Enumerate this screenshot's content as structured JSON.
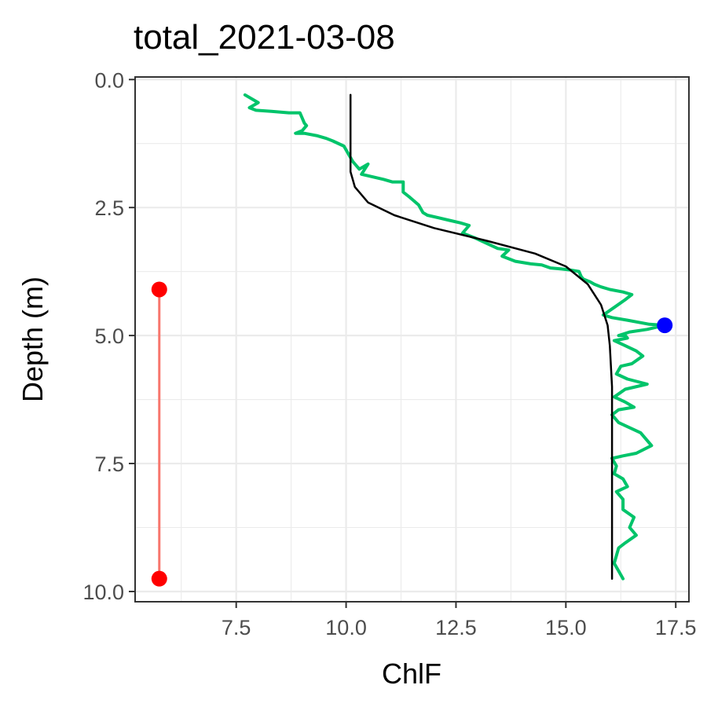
{
  "chart_data": {
    "type": "line",
    "title": "total_2021-03-08",
    "xlabel": "ChlF",
    "ylabel": "Depth (m)",
    "xlim": [
      5.2,
      17.8
    ],
    "ylim": [
      10.2,
      -0.05
    ],
    "y_reversed": true,
    "grid": true,
    "x_ticks": [
      "7.5",
      "10.0",
      "12.5",
      "15.0",
      "17.5"
    ],
    "x_tick_values": [
      7.5,
      10.0,
      12.5,
      15.0,
      17.5
    ],
    "y_ticks": [
      "0.0",
      "2.5",
      "5.0",
      "7.5",
      "10.0"
    ],
    "y_tick_values": [
      0.0,
      2.5,
      5.0,
      7.5,
      10.0
    ],
    "series": [
      {
        "kind": "observed",
        "color": "#00c46a",
        "points": [
          [
            7.7,
            0.3
          ],
          [
            8.0,
            0.45
          ],
          [
            7.8,
            0.55
          ],
          [
            7.95,
            0.6
          ],
          [
            8.3,
            0.62
          ],
          [
            8.7,
            0.65
          ],
          [
            8.95,
            0.65
          ],
          [
            9.0,
            0.75
          ],
          [
            9.05,
            0.85
          ],
          [
            9.1,
            0.9
          ],
          [
            9.0,
            1.0
          ],
          [
            8.85,
            1.05
          ],
          [
            9.05,
            1.05
          ],
          [
            9.35,
            1.1
          ],
          [
            9.55,
            1.15
          ],
          [
            9.7,
            1.2
          ],
          [
            9.95,
            1.3
          ],
          [
            10.05,
            1.45
          ],
          [
            10.15,
            1.6
          ],
          [
            10.3,
            1.75
          ],
          [
            10.5,
            1.65
          ],
          [
            10.35,
            1.85
          ],
          [
            10.6,
            1.9
          ],
          [
            10.85,
            1.95
          ],
          [
            11.05,
            2.0
          ],
          [
            11.3,
            2.0
          ],
          [
            11.3,
            2.2
          ],
          [
            11.45,
            2.3
          ],
          [
            11.65,
            2.45
          ],
          [
            11.75,
            2.6
          ],
          [
            11.85,
            2.65
          ],
          [
            12.1,
            2.7
          ],
          [
            12.35,
            2.75
          ],
          [
            12.6,
            2.8
          ],
          [
            12.8,
            2.85
          ],
          [
            12.65,
            3.0
          ],
          [
            12.95,
            3.1
          ],
          [
            13.2,
            3.2
          ],
          [
            13.45,
            3.3
          ],
          [
            13.7,
            3.33
          ],
          [
            13.55,
            3.45
          ],
          [
            13.85,
            3.55
          ],
          [
            14.2,
            3.6
          ],
          [
            14.45,
            3.62
          ],
          [
            14.65,
            3.68
          ],
          [
            14.9,
            3.7
          ],
          [
            15.1,
            3.72
          ],
          [
            15.3,
            3.75
          ],
          [
            15.35,
            3.85
          ],
          [
            15.4,
            3.9
          ],
          [
            15.55,
            3.95
          ],
          [
            15.65,
            4.0
          ],
          [
            15.8,
            4.05
          ],
          [
            16.0,
            4.1
          ],
          [
            16.3,
            4.15
          ],
          [
            16.5,
            4.2
          ],
          [
            16.35,
            4.3
          ],
          [
            16.1,
            4.45
          ],
          [
            15.85,
            4.6
          ],
          [
            16.05,
            4.65
          ],
          [
            16.4,
            4.7
          ],
          [
            16.9,
            4.78
          ],
          [
            17.25,
            4.8
          ],
          [
            16.85,
            4.88
          ],
          [
            16.45,
            4.93
          ],
          [
            16.2,
            5.0
          ],
          [
            16.35,
            5.0
          ],
          [
            16.4,
            5.05
          ],
          [
            16.1,
            5.1
          ],
          [
            16.35,
            5.2
          ],
          [
            16.6,
            5.3
          ],
          [
            16.75,
            5.4
          ],
          [
            16.5,
            5.55
          ],
          [
            16.25,
            5.6
          ],
          [
            16.15,
            5.75
          ],
          [
            16.4,
            5.85
          ],
          [
            16.85,
            5.95
          ],
          [
            16.35,
            6.05
          ],
          [
            16.1,
            6.2
          ],
          [
            16.35,
            6.3
          ],
          [
            16.55,
            6.4
          ],
          [
            16.2,
            6.45
          ],
          [
            16.05,
            6.55
          ],
          [
            16.2,
            6.7
          ],
          [
            16.45,
            6.8
          ],
          [
            16.7,
            6.9
          ],
          [
            16.85,
            7.05
          ],
          [
            16.95,
            7.15
          ],
          [
            16.6,
            7.3
          ],
          [
            16.3,
            7.35
          ],
          [
            16.05,
            7.4
          ],
          [
            16.15,
            7.55
          ],
          [
            16.1,
            7.7
          ],
          [
            16.3,
            7.8
          ],
          [
            16.4,
            7.95
          ],
          [
            16.15,
            8.05
          ],
          [
            16.3,
            8.2
          ],
          [
            16.3,
            8.4
          ],
          [
            16.55,
            8.55
          ],
          [
            16.45,
            8.75
          ],
          [
            16.6,
            8.9
          ],
          [
            16.35,
            9.05
          ],
          [
            16.2,
            9.15
          ],
          [
            16.15,
            9.3
          ],
          [
            16.1,
            9.45
          ],
          [
            16.2,
            9.6
          ],
          [
            16.3,
            9.75
          ]
        ]
      },
      {
        "kind": "fitted",
        "color": "#000000",
        "points": [
          [
            10.1,
            0.3
          ],
          [
            10.1,
            1.8
          ],
          [
            10.2,
            2.1
          ],
          [
            10.5,
            2.4
          ],
          [
            11.1,
            2.65
          ],
          [
            12.0,
            2.9
          ],
          [
            13.2,
            3.15
          ],
          [
            14.3,
            3.4
          ],
          [
            15.0,
            3.65
          ],
          [
            15.5,
            4.0
          ],
          [
            15.8,
            4.4
          ],
          [
            15.95,
            4.8
          ],
          [
            16.0,
            5.2
          ],
          [
            16.05,
            6.0
          ],
          [
            16.05,
            7.5
          ],
          [
            16.05,
            9.75
          ]
        ]
      }
    ],
    "highlight_point": {
      "x": 17.25,
      "y": 4.8,
      "color": "#0000ff"
    },
    "range_bar": {
      "x": 5.75,
      "y_top": 4.1,
      "y_bottom": 9.75,
      "line_color": "#f8766d",
      "dot_color": "#ff0000"
    }
  }
}
